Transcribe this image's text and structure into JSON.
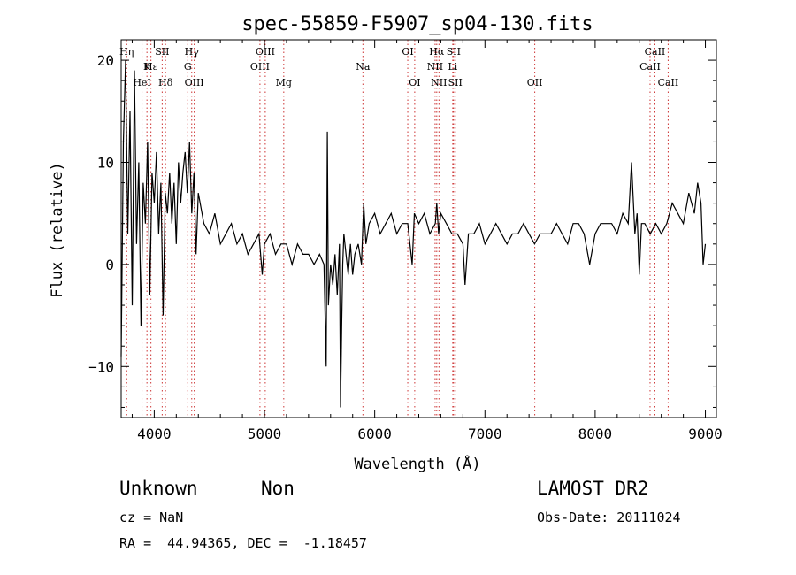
{
  "chart_data": {
    "type": "line",
    "title": "spec-55859-F5907_sp04-130.fits",
    "xlabel": "Wavelength (Å)",
    "ylabel": "Flux (relative)",
    "xlim": [
      3700,
      9100
    ],
    "ylim": [
      -15,
      22
    ],
    "xticks": [
      4000,
      5000,
      6000,
      7000,
      8000,
      9000
    ],
    "yticks": [
      -10,
      0,
      10,
      20
    ],
    "grid": false,
    "line_color": "#000000",
    "marker_color": "#cc3333",
    "series": [
      {
        "x": [
          3700,
          3720,
          3740,
          3760,
          3780,
          3800,
          3820,
          3840,
          3860,
          3880,
          3900,
          3920,
          3940,
          3960,
          3980,
          4000,
          4020,
          4040,
          4060,
          4080,
          4100,
          4120,
          4140,
          4160,
          4180,
          4200,
          4220,
          4240,
          4260,
          4280,
          4300,
          4320,
          4340,
          4360,
          4380,
          4400,
          4450,
          4500,
          4550,
          4600,
          4650,
          4700,
          4750,
          4800,
          4850,
          4900,
          4950,
          4980,
          5000,
          5050,
          5100,
          5150,
          5200,
          5250,
          5300,
          5350,
          5400,
          5450,
          5500,
          5540,
          5560,
          5570,
          5580,
          5600,
          5620,
          5640,
          5660,
          5680,
          5690,
          5700,
          5710,
          5720,
          5740,
          5760,
          5780,
          5800,
          5820,
          5850,
          5880,
          5900,
          5920,
          5950,
          6000,
          6050,
          6100,
          6150,
          6200,
          6250,
          6300,
          6340,
          6360,
          6400,
          6450,
          6500,
          6550,
          6563,
          6580,
          6600,
          6650,
          6700,
          6720,
          6750,
          6800,
          6820,
          6850,
          6900,
          6950,
          7000,
          7050,
          7100,
          7150,
          7200,
          7250,
          7300,
          7350,
          7400,
          7450,
          7500,
          7550,
          7600,
          7650,
          7700,
          7750,
          7800,
          7850,
          7900,
          7950,
          8000,
          8050,
          8100,
          8150,
          8200,
          8250,
          8300,
          8330,
          8360,
          8380,
          8400,
          8420,
          8450,
          8500,
          8550,
          8600,
          8650,
          8700,
          8750,
          8800,
          8850,
          8900,
          8930,
          8960,
          8980,
          9000
        ],
        "y": [
          -9,
          12,
          20,
          3,
          15,
          -4,
          19,
          2,
          10,
          -6,
          8,
          4,
          12,
          -3,
          9,
          6,
          11,
          3,
          8,
          -5,
          7,
          5,
          9,
          4,
          8,
          2,
          10,
          6,
          9,
          11,
          7,
          12,
          5,
          9,
          1,
          7,
          4,
          3,
          5,
          2,
          3,
          4,
          2,
          3,
          1,
          2,
          3,
          -1,
          2,
          3,
          1,
          2,
          2,
          0,
          2,
          1,
          1,
          0,
          1,
          0,
          -10,
          13,
          -4,
          0,
          -2,
          1,
          -3,
          2,
          -14,
          -6,
          0,
          3,
          1,
          -1,
          2,
          -1,
          1,
          2,
          0,
          6,
          2,
          4,
          5,
          3,
          4,
          5,
          3,
          4,
          4,
          0,
          5,
          4,
          5,
          3,
          4,
          6,
          3,
          5,
          4,
          3,
          3,
          3,
          2,
          -2,
          3,
          3,
          4,
          2,
          3,
          4,
          3,
          2,
          3,
          3,
          4,
          3,
          2,
          3,
          3,
          3,
          4,
          3,
          2,
          4,
          4,
          3,
          0,
          3,
          4,
          4,
          4,
          3,
          5,
          4,
          10,
          3,
          5,
          -1,
          4,
          4,
          3,
          4,
          3,
          4,
          6,
          5,
          4,
          7,
          5,
          8,
          6,
          0,
          2
        ]
      }
    ],
    "lines": [
      {
        "x": 3750,
        "row": 0,
        "label": "Hη"
      },
      {
        "x": 3889,
        "row": 2,
        "label": "HeI"
      },
      {
        "x": 3934,
        "row": 1,
        "label": "K"
      },
      {
        "x": 3970,
        "row": 1,
        "label": "Hε"
      },
      {
        "x": 4072,
        "row": 0,
        "label": "SII"
      },
      {
        "x": 4102,
        "row": 2,
        "label": "Hδ"
      },
      {
        "x": 4304,
        "row": 1,
        "label": "G"
      },
      {
        "x": 4340,
        "row": 0,
        "label": "Hγ"
      },
      {
        "x": 4363,
        "row": 2,
        "label": "OIII"
      },
      {
        "x": 4959,
        "row": 1,
        "label": "OIII"
      },
      {
        "x": 5007,
        "row": 0,
        "label": "OIII"
      },
      {
        "x": 5175,
        "row": 2,
        "label": "Mg"
      },
      {
        "x": 5893,
        "row": 1,
        "label": "Na"
      },
      {
        "x": 6300,
        "row": 0,
        "label": "OI"
      },
      {
        "x": 6363,
        "row": 2,
        "label": "OI"
      },
      {
        "x": 6548,
        "row": 1,
        "label": "NII"
      },
      {
        "x": 6563,
        "row": 0,
        "label": "Hα"
      },
      {
        "x": 6583,
        "row": 2,
        "label": "NII"
      },
      {
        "x": 6708,
        "row": 1,
        "label": "Li"
      },
      {
        "x": 6716,
        "row": 0,
        "label": "SII"
      },
      {
        "x": 6731,
        "row": 2,
        "label": "SII"
      },
      {
        "x": 7452,
        "row": 2,
        "label": "OII"
      },
      {
        "x": 8498,
        "row": 1,
        "label": "CaII"
      },
      {
        "x": 8542,
        "row": 0,
        "label": "CaII"
      },
      {
        "x": 8662,
        "row": 2,
        "label": "CaII"
      }
    ]
  },
  "info": {
    "class": "Unknown",
    "subclass": "Non",
    "survey": "LAMOST DR2",
    "cz": "cz = NaN",
    "obs_date": "Obs-Date: 20111024",
    "radec": "RA =  44.94365, DEC =  -1.18457"
  }
}
